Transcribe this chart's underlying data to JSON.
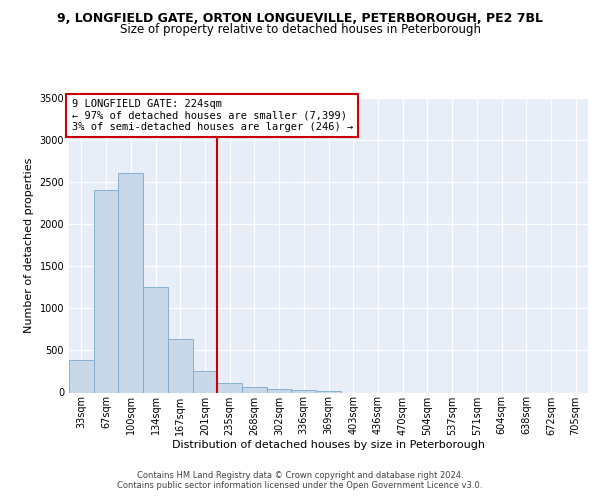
{
  "title_line1": "9, LONGFIELD GATE, ORTON LONGUEVILLE, PETERBOROUGH, PE2 7BL",
  "title_line2": "Size of property relative to detached houses in Peterborough",
  "xlabel": "Distribution of detached houses by size in Peterborough",
  "ylabel": "Number of detached properties",
  "footer_line1": "Contains HM Land Registry data © Crown copyright and database right 2024.",
  "footer_line2": "Contains public sector information licensed under the Open Government Licence v3.0.",
  "annotation_line1": "9 LONGFIELD GATE: 224sqm",
  "annotation_line2": "← 97% of detached houses are smaller (7,399)",
  "annotation_line3": "3% of semi-detached houses are larger (246) →",
  "categories": [
    "33sqm",
    "67sqm",
    "100sqm",
    "134sqm",
    "167sqm",
    "201sqm",
    "235sqm",
    "268sqm",
    "302sqm",
    "336sqm",
    "369sqm",
    "403sqm",
    "436sqm",
    "470sqm",
    "504sqm",
    "537sqm",
    "571sqm",
    "604sqm",
    "638sqm",
    "672sqm",
    "705sqm"
  ],
  "bar_values": [
    390,
    2400,
    2600,
    1250,
    640,
    250,
    110,
    60,
    45,
    30,
    20,
    0,
    0,
    0,
    0,
    0,
    0,
    0,
    0,
    0,
    0
  ],
  "bar_color": "#c8d8e8",
  "bar_edge_color": "#7aa8cc",
  "vline_color": "#cc0000",
  "background_color": "#e8eef8",
  "ylim": [
    0,
    3500
  ],
  "yticks": [
    0,
    500,
    1000,
    1500,
    2000,
    2500,
    3000,
    3500
  ],
  "annotation_box_color": "#cc0000",
  "title_fontsize": 9,
  "subtitle_fontsize": 8.5,
  "axis_label_fontsize": 8,
  "tick_fontsize": 7,
  "footer_fontsize": 6,
  "annot_fontsize": 7.5,
  "vline_pos": 5.5
}
